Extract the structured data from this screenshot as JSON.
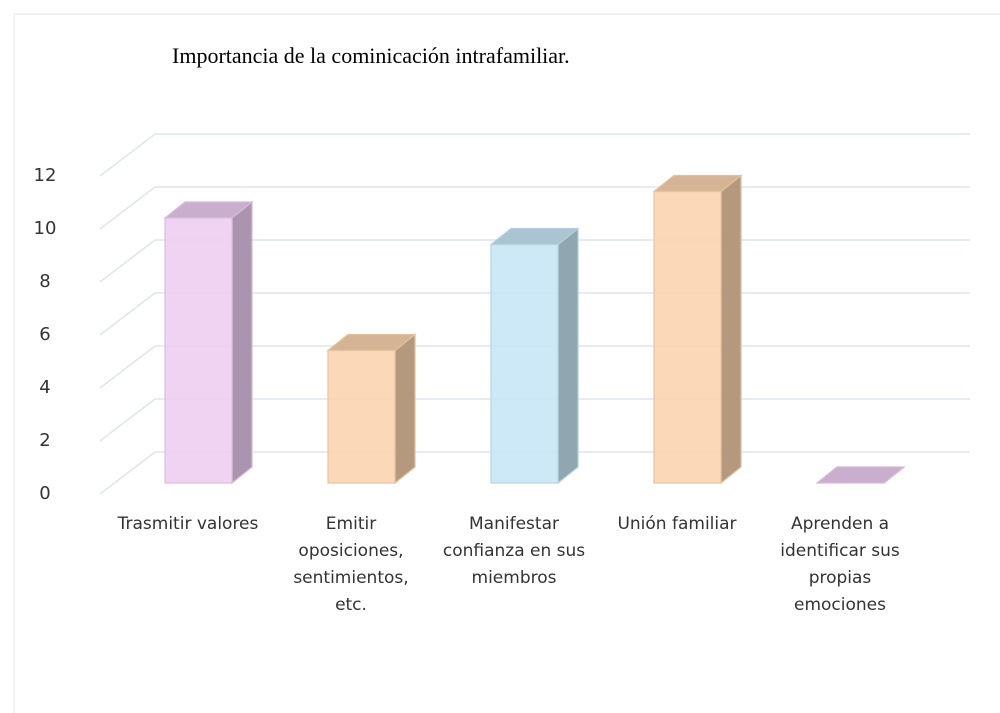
{
  "chart_data": {
    "type": "bar3d",
    "title": "Importancia de la cominicación intrafamiliar.",
    "categories": [
      "Trasmitir valores",
      "Emitir oposiciones, sentimientos, etc.",
      "Manifestar confianza en sus miembros",
      "Unión familiar",
      "Aprenden a identificar sus propias emociones"
    ],
    "values": [
      10,
      5,
      9,
      11,
      0
    ],
    "colors": [
      "#eecdf2",
      "#fbd4b0",
      "#c8e6f6",
      "#fbd4b0",
      "#eecdf2"
    ],
    "ylim": [
      0,
      12
    ],
    "yticks": [
      0,
      2,
      4,
      6,
      8,
      10,
      12
    ],
    "grid": true
  }
}
